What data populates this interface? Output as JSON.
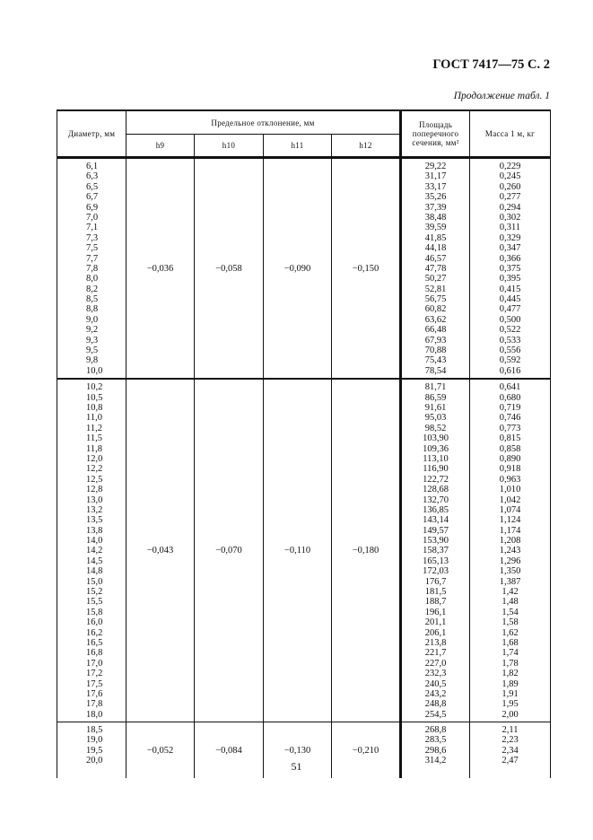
{
  "header": {
    "title": "ГОСТ 7417—75 С. 2",
    "continuation": "Продолжение табл. 1"
  },
  "table": {
    "columns": {
      "diameter": "Диаметр, мм",
      "tolerance": "Предельное отклонение, мм",
      "h9": "h9",
      "h10": "h10",
      "h11": "h11",
      "h12": "h12",
      "area": "Площадь поперечного сечения, мм²",
      "mass": "Масса 1 м, кг"
    },
    "groups": [
      {
        "h9": "−0,036",
        "h10": "−0,058",
        "h11": "−0,090",
        "h12": "−0,150",
        "diameter": [
          "6,1",
          "6,3",
          "6,5",
          "6,7",
          "6,9",
          "7,0",
          "7,1",
          "7,3",
          "7,5",
          "7,7",
          "7,8",
          "8,0",
          "8,2",
          "8,5",
          "8,8",
          "9,0",
          "9,2",
          "9,3",
          "9,5",
          "9,8",
          "10,0"
        ],
        "area": [
          "29,22",
          "31,17",
          "33,17",
          "35,26",
          "37,39",
          "38,48",
          "39,59",
          "41,85",
          "44,18",
          "46,57",
          "47,78",
          "50,27",
          "52,81",
          "56,75",
          "60,82",
          "63,62",
          "66,48",
          "67,93",
          "70,88",
          "75,43",
          "78,54"
        ],
        "mass": [
          "0,229",
          "0,245",
          "0,260",
          "0,277",
          "0,294",
          "0,302",
          "0,311",
          "0,329",
          "0,347",
          "0,366",
          "0,375",
          "0,395",
          "0,415",
          "0,445",
          "0,477",
          "0,500",
          "0,522",
          "0,533",
          "0,556",
          "0,592",
          "0,616"
        ]
      },
      {
        "h9": "−0,043",
        "h10": "−0,070",
        "h11": "−0,110",
        "h12": "−0,180",
        "diameter": [
          "10,2",
          "10,5",
          "10,8",
          "11,0",
          "11,2",
          "11,5",
          "11,8",
          "12,0",
          "12,2",
          "12,5",
          "12,8",
          "13,0",
          "13,2",
          "13,5",
          "13,8",
          "14,0",
          "14,2",
          "14,5",
          "14,8",
          "15,0",
          "15,2",
          "15,5",
          "15,8",
          "16,0",
          "16,2",
          "16,5",
          "16,8",
          "17,0",
          "17,2",
          "17,5",
          "17,6",
          "17,8",
          "18,0"
        ],
        "area": [
          "81,71",
          "86,59",
          "91,61",
          "95,03",
          "98,52",
          "103,90",
          "109,36",
          "113,10",
          "116,90",
          "122,72",
          "128,68",
          "132,70",
          "136,85",
          "143,14",
          "149,57",
          "153,90",
          "158,37",
          "165,13",
          "172,03",
          "176,7",
          "181,5",
          "188,7",
          "196,1",
          "201,1",
          "206,1",
          "213,8",
          "221,7",
          "227,0",
          "232,3",
          "240,5",
          "243,2",
          "248,8",
          "254,5"
        ],
        "mass": [
          "0,641",
          "0,680",
          "0,719",
          "0,746",
          "0,773",
          "0,815",
          "0,858",
          "0,890",
          "0,918",
          "0,963",
          "1,010",
          "1,042",
          "1,074",
          "1,124",
          "1,174",
          "1,208",
          "1,243",
          "1,296",
          "1,350",
          "1,387",
          "1,42",
          "1,48",
          "1,54",
          "1,58",
          "1,62",
          "1,68",
          "1,74",
          "1,78",
          "1,82",
          "1,89",
          "1,91",
          "1,95",
          "2,00"
        ]
      },
      {
        "h9": "−0,052",
        "h10": "−0,084",
        "h11": "−0,130",
        "h12": "−0,210",
        "diameter": [
          "18,5",
          "19,0",
          "19,5",
          "20,0"
        ],
        "area": [
          "268,8",
          "283,5",
          "298,6",
          "314,2"
        ],
        "mass": [
          "2,11",
          "2,23",
          "2,34",
          "2,47"
        ]
      }
    ]
  },
  "footer": {
    "page_number": "51"
  }
}
